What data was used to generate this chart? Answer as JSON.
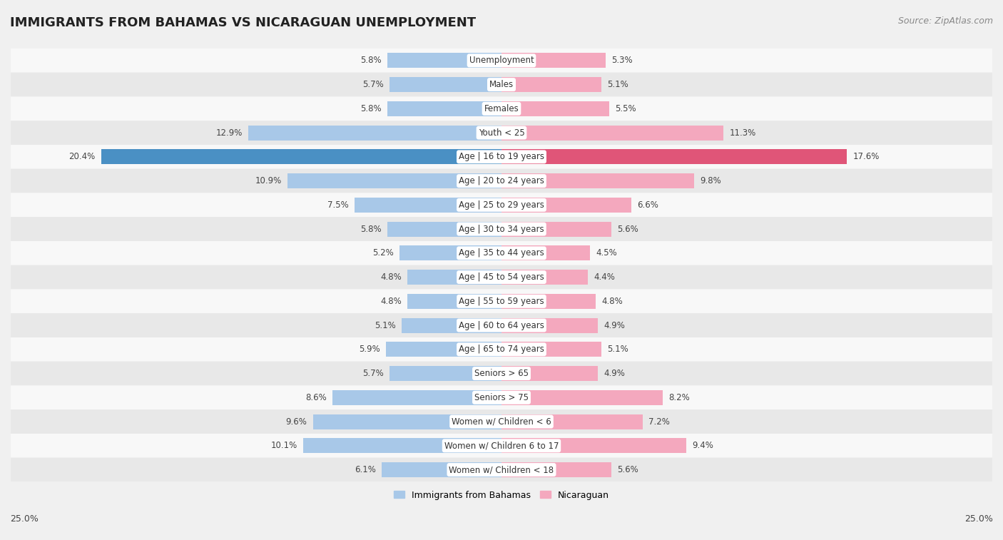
{
  "title": "IMMIGRANTS FROM BAHAMAS VS NICARAGUAN UNEMPLOYMENT",
  "source": "Source: ZipAtlas.com",
  "categories": [
    "Unemployment",
    "Males",
    "Females",
    "Youth < 25",
    "Age | 16 to 19 years",
    "Age | 20 to 24 years",
    "Age | 25 to 29 years",
    "Age | 30 to 34 years",
    "Age | 35 to 44 years",
    "Age | 45 to 54 years",
    "Age | 55 to 59 years",
    "Age | 60 to 64 years",
    "Age | 65 to 74 years",
    "Seniors > 65",
    "Seniors > 75",
    "Women w/ Children < 6",
    "Women w/ Children 6 to 17",
    "Women w/ Children < 18"
  ],
  "bahamas_values": [
    5.8,
    5.7,
    5.8,
    12.9,
    20.4,
    10.9,
    7.5,
    5.8,
    5.2,
    4.8,
    4.8,
    5.1,
    5.9,
    5.7,
    8.6,
    9.6,
    10.1,
    6.1
  ],
  "nicaraguan_values": [
    5.3,
    5.1,
    5.5,
    11.3,
    17.6,
    9.8,
    6.6,
    5.6,
    4.5,
    4.4,
    4.8,
    4.9,
    5.1,
    4.9,
    8.2,
    7.2,
    9.4,
    5.6
  ],
  "bahamas_color": "#a8c8e8",
  "nicaraguan_color": "#f4a8be",
  "bahamas_highlight_color": "#4a90c4",
  "nicaraguan_highlight_color": "#e05578",
  "highlight_row": 4,
  "xlim": 25.0,
  "background_color": "#f0f0f0",
  "row_bg_light": "#f8f8f8",
  "row_bg_dark": "#e8e8e8",
  "title_fontsize": 13,
  "source_fontsize": 9,
  "label_fontsize": 8.5,
  "value_fontsize": 8.5,
  "legend_fontsize": 9,
  "bar_height": 0.62
}
